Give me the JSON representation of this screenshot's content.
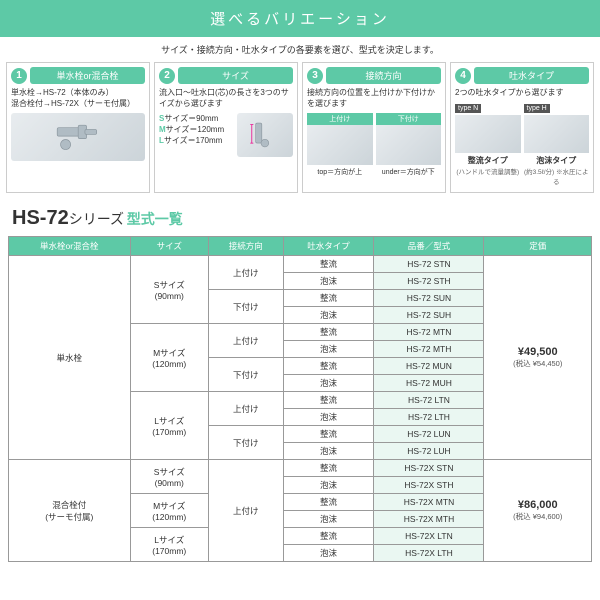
{
  "colors": {
    "accent": "#5dc9a6",
    "bg": "#ffffff",
    "rowAlt": "#eaf7f2",
    "border": "#999999"
  },
  "header": {
    "title": "選べるバリエーション",
    "subtitle": "サイズ・接続方向・吐水タイプの各要素を選び、型式を決定します。"
  },
  "steps": [
    {
      "num": "1",
      "title": "単水栓or混合栓",
      "lines": [
        "単水栓→HS-72（本体のみ）",
        "混合栓付→HS-72X（サーモ付属）"
      ]
    },
    {
      "num": "2",
      "title": "サイズ",
      "desc": "流入口～吐水口(芯)の長さを3つのサイズから選びます",
      "sizes": [
        {
          "k": "S",
          "v": "サイズ＝90mm"
        },
        {
          "k": "M",
          "v": "サイズ＝120mm"
        },
        {
          "k": "L",
          "v": "サイズ＝170mm"
        }
      ]
    },
    {
      "num": "3",
      "title": "接続方向",
      "desc": "接続方向の位置を上付けか下付けかを選びます",
      "opts": [
        {
          "label": "上付け",
          "sub": "top＝方向が上"
        },
        {
          "label": "下付け",
          "sub": "under＝方向が下"
        }
      ]
    },
    {
      "num": "4",
      "title": "吐水タイプ",
      "desc": "2つの吐水タイプから選びます",
      "types": [
        {
          "badge": "type N",
          "name": "整流タイプ",
          "note": "(ハンドルで流量調整)"
        },
        {
          "badge": "type H",
          "name": "泡沫タイプ",
          "note": "(約3.5ℓ/分) ※水圧による"
        }
      ]
    }
  ],
  "series": {
    "name": "HS-72",
    "suffix": "シリーズ",
    "listTitle": "型式一覧"
  },
  "tableHeaders": [
    "単水栓or混合栓",
    "サイズ",
    "接続方向",
    "吐水タイプ",
    "品番／型式",
    "定価"
  ],
  "groups": [
    {
      "variant": "単水栓",
      "price": "¥49,500",
      "tax": "(税込 ¥54,450)",
      "sizes": [
        {
          "size": "Sサイズ",
          "dim": "(90mm)",
          "dirs": [
            {
              "dir": "上付け",
              "rows": [
                {
                  "w": "整流",
                  "m": "HS-72 STN"
                },
                {
                  "w": "泡沫",
                  "m": "HS-72 STH"
                }
              ]
            },
            {
              "dir": "下付け",
              "rows": [
                {
                  "w": "整流",
                  "m": "HS-72 SUN"
                },
                {
                  "w": "泡沫",
                  "m": "HS-72 SUH"
                }
              ]
            }
          ]
        },
        {
          "size": "Mサイズ",
          "dim": "(120mm)",
          "dirs": [
            {
              "dir": "上付け",
              "rows": [
                {
                  "w": "整流",
                  "m": "HS-72 MTN"
                },
                {
                  "w": "泡沫",
                  "m": "HS-72 MTH"
                }
              ]
            },
            {
              "dir": "下付け",
              "rows": [
                {
                  "w": "整流",
                  "m": "HS-72 MUN"
                },
                {
                  "w": "泡沫",
                  "m": "HS-72 MUH"
                }
              ]
            }
          ]
        },
        {
          "size": "Lサイズ",
          "dim": "(170mm)",
          "dirs": [
            {
              "dir": "上付け",
              "rows": [
                {
                  "w": "整流",
                  "m": "HS-72 LTN"
                },
                {
                  "w": "泡沫",
                  "m": "HS-72 LTH"
                }
              ]
            },
            {
              "dir": "下付け",
              "rows": [
                {
                  "w": "整流",
                  "m": "HS-72 LUN"
                },
                {
                  "w": "泡沫",
                  "m": "HS-72 LUH"
                }
              ]
            }
          ]
        }
      ]
    },
    {
      "variant": "混合栓付",
      "variantNote": "(サーモ付属)",
      "price": "¥86,000",
      "tax": "(税込 ¥94,600)",
      "sharedDir": "上付け",
      "sizes": [
        {
          "size": "Sサイズ",
          "dim": "(90mm)",
          "rows": [
            {
              "w": "整流",
              "m": "HS-72X STN"
            },
            {
              "w": "泡沫",
              "m": "HS-72X STH"
            }
          ]
        },
        {
          "size": "Mサイズ",
          "dim": "(120mm)",
          "rows": [
            {
              "w": "整流",
              "m": "HS-72X MTN"
            },
            {
              "w": "泡沫",
              "m": "HS-72X MTH"
            }
          ]
        },
        {
          "size": "Lサイズ",
          "dim": "(170mm)",
          "rows": [
            {
              "w": "整流",
              "m": "HS-72X LTN"
            },
            {
              "w": "泡沫",
              "m": "HS-72X LTH"
            }
          ]
        }
      ]
    }
  ]
}
